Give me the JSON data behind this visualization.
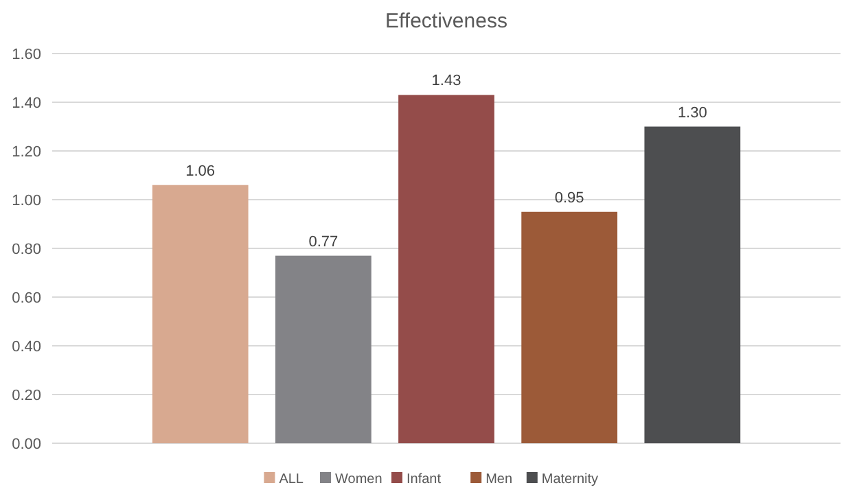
{
  "chart_data": {
    "type": "bar",
    "title": "Effectiveness",
    "categories": [
      null
    ],
    "series": [
      {
        "name": "ALL",
        "color": "#d8a990",
        "values": [
          1.06
        ],
        "value_labels": [
          "1.06"
        ]
      },
      {
        "name": "Women",
        "color": "#838387",
        "values": [
          0.77
        ],
        "value_labels": [
          "0.77"
        ]
      },
      {
        "name": "Infant",
        "color": "#944c4a",
        "values": [
          1.43
        ],
        "value_labels": [
          "1.43"
        ]
      },
      {
        "name": "Men",
        "color": "#9c5a38",
        "values": [
          0.95
        ],
        "value_labels": [
          "0.95"
        ]
      },
      {
        "name": "Maternity",
        "color": "#4d4e50",
        "values": [
          1.3
        ],
        "value_labels": [
          "1.30"
        ]
      }
    ],
    "ylim": [
      0,
      1.6
    ],
    "yticks": [
      {
        "value": 0,
        "label": "0.00"
      },
      {
        "value": 0.2,
        "label": "0.20"
      },
      {
        "value": 0.4,
        "label": "0.40"
      },
      {
        "value": 0.6,
        "label": "0.60"
      },
      {
        "value": 0.8,
        "label": "0.80"
      },
      {
        "value": 1,
        "label": "1.00"
      },
      {
        "value": 1.2,
        "label": "1.20"
      },
      {
        "value": 1.4,
        "label": "1.40"
      },
      {
        "value": 1.6,
        "label": "1.60"
      }
    ],
    "grid": "y",
    "legend": "bottom"
  }
}
